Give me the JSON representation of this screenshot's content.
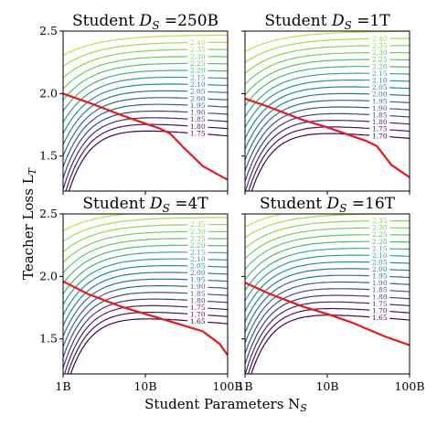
{
  "figure": {
    "xlabel": "Student Parameters N",
    "xlabel_sub": "S",
    "ylabel": "Teacher Loss L",
    "ylabel_sub": "T"
  },
  "chart_data": [
    {
      "type": "contour",
      "title_prefix": "Student ",
      "title_var": "D",
      "title_sub": "S",
      "title_value": " =250B",
      "x_scale": "log",
      "xlim": [
        1,
        100
      ],
      "ylim": [
        1.22,
        2.5
      ],
      "xticks": [
        "1B",
        "10B",
        "100B"
      ],
      "yticks": [
        "1.5",
        "2.0",
        "2.5"
      ],
      "contour_levels": [
        "2.45",
        "2.40",
        "2.35",
        "2.30",
        "2.25",
        "2.20",
        "2.15",
        "2.10",
        "2.05",
        "2.00",
        "1.95",
        "1.90",
        "1.85",
        "1.80",
        "1.75"
      ],
      "red_line": {
        "x": [
          1,
          2,
          5,
          10,
          15,
          20,
          30,
          50,
          100
        ],
        "y": [
          2.0,
          1.93,
          1.83,
          1.76,
          1.72,
          1.68,
          1.56,
          1.42,
          1.31
        ]
      }
    },
    {
      "type": "contour",
      "title_prefix": "Student ",
      "title_var": "D",
      "title_sub": "S",
      "title_value": " =1T",
      "x_scale": "log",
      "xlim": [
        1,
        100
      ],
      "ylim": [
        1.22,
        2.5
      ],
      "xticks": [
        "1B",
        "10B",
        "100B"
      ],
      "yticks": [
        "1.5",
        "2.0",
        "2.5"
      ],
      "contour_levels": [
        "2.45",
        "2.40",
        "2.35",
        "2.30",
        "2.25",
        "2.20",
        "2.15",
        "2.10",
        "2.05",
        "2.00",
        "1.95",
        "1.90",
        "1.85",
        "1.80",
        "1.75",
        "1.70"
      ],
      "red_line": {
        "x": [
          1,
          2,
          5,
          10,
          20,
          30,
          40,
          60,
          100
        ],
        "y": [
          1.96,
          1.89,
          1.79,
          1.73,
          1.66,
          1.62,
          1.58,
          1.43,
          1.33
        ]
      }
    },
    {
      "type": "contour",
      "title_prefix": "Student ",
      "title_var": "D",
      "title_sub": "S",
      "title_value": " =4T",
      "x_scale": "log",
      "xlim": [
        1,
        100
      ],
      "ylim": [
        1.22,
        2.5
      ],
      "xticks": [
        "1B",
        "10B",
        "100B"
      ],
      "yticks": [
        "1.5",
        "2.0",
        "2.5"
      ],
      "contour_levels": [
        "2.45",
        "2.40",
        "2.35",
        "2.30",
        "2.25",
        "2.20",
        "2.15",
        "2.10",
        "2.05",
        "2.00",
        "1.95",
        "1.90",
        "1.85",
        "1.80",
        "1.75",
        "1.70",
        "1.65"
      ],
      "red_line": {
        "x": [
          1,
          2,
          5,
          10,
          20,
          50,
          80,
          100
        ],
        "y": [
          1.96,
          1.86,
          1.76,
          1.7,
          1.64,
          1.56,
          1.46,
          1.37
        ]
      }
    },
    {
      "type": "contour",
      "title_prefix": "Student ",
      "title_var": "D",
      "title_sub": "S",
      "title_value": " =16T",
      "x_scale": "log",
      "xlim": [
        1,
        100
      ],
      "ylim": [
        1.22,
        2.5
      ],
      "xticks": [
        "1B",
        "10B",
        "100B"
      ],
      "yticks": [
        "1.5",
        "2.0",
        "2.5"
      ],
      "contour_levels": [
        "2.45",
        "2.40",
        "2.35",
        "2.30",
        "2.25",
        "2.20",
        "2.15",
        "2.10",
        "2.05",
        "2.00",
        "1.95",
        "1.90",
        "1.85",
        "1.80",
        "1.75",
        "1.70",
        "1.65"
      ],
      "red_line": {
        "x": [
          1,
          2,
          5,
          10,
          20,
          50,
          100
        ],
        "y": [
          1.95,
          1.86,
          1.76,
          1.7,
          1.63,
          1.52,
          1.45
        ]
      }
    }
  ]
}
